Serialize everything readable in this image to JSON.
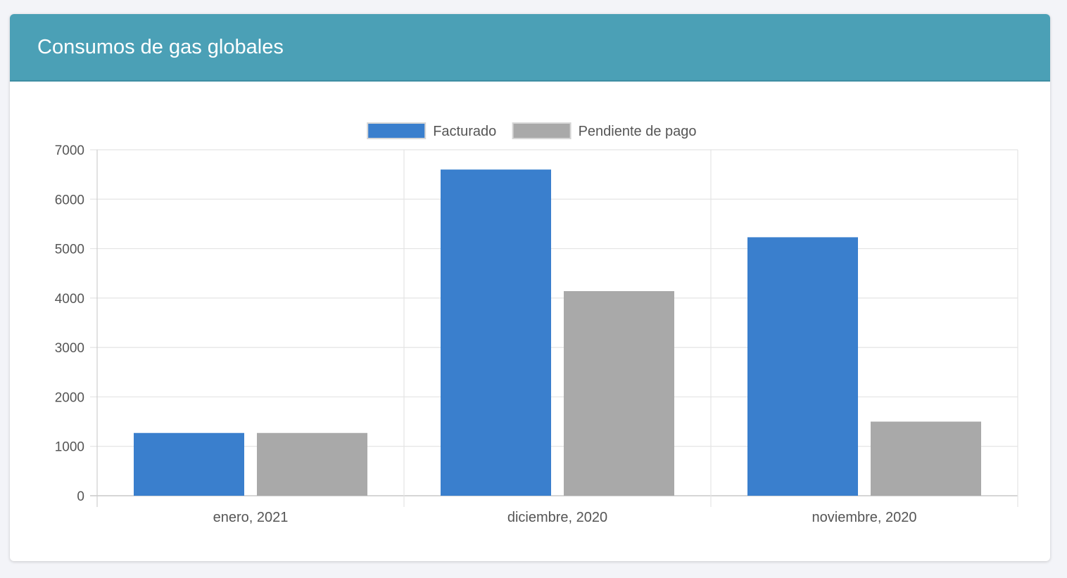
{
  "card": {
    "title": "Consumos de gas globales"
  },
  "colors": {
    "header": "#4ba0b6",
    "series_facturado": "#3a7fcd",
    "series_pendiente": "#a9a9a9",
    "grid": "#e4e4e4",
    "tick_text": "#555555"
  },
  "chart_data": {
    "type": "bar",
    "categories": [
      "enero, 2021",
      "diciembre, 2020",
      "noviembre, 2020"
    ],
    "series": [
      {
        "name": "Facturado",
        "color": "#3a7fcd",
        "values": [
          1270,
          6600,
          5230
        ]
      },
      {
        "name": "Pendiente de pago",
        "color": "#a9a9a9",
        "values": [
          1270,
          4140,
          1500
        ]
      }
    ],
    "ylim": [
      0,
      7000
    ],
    "yticks": [
      0,
      1000,
      2000,
      3000,
      4000,
      5000,
      6000,
      7000
    ],
    "grid": true,
    "legend": "top-center"
  }
}
